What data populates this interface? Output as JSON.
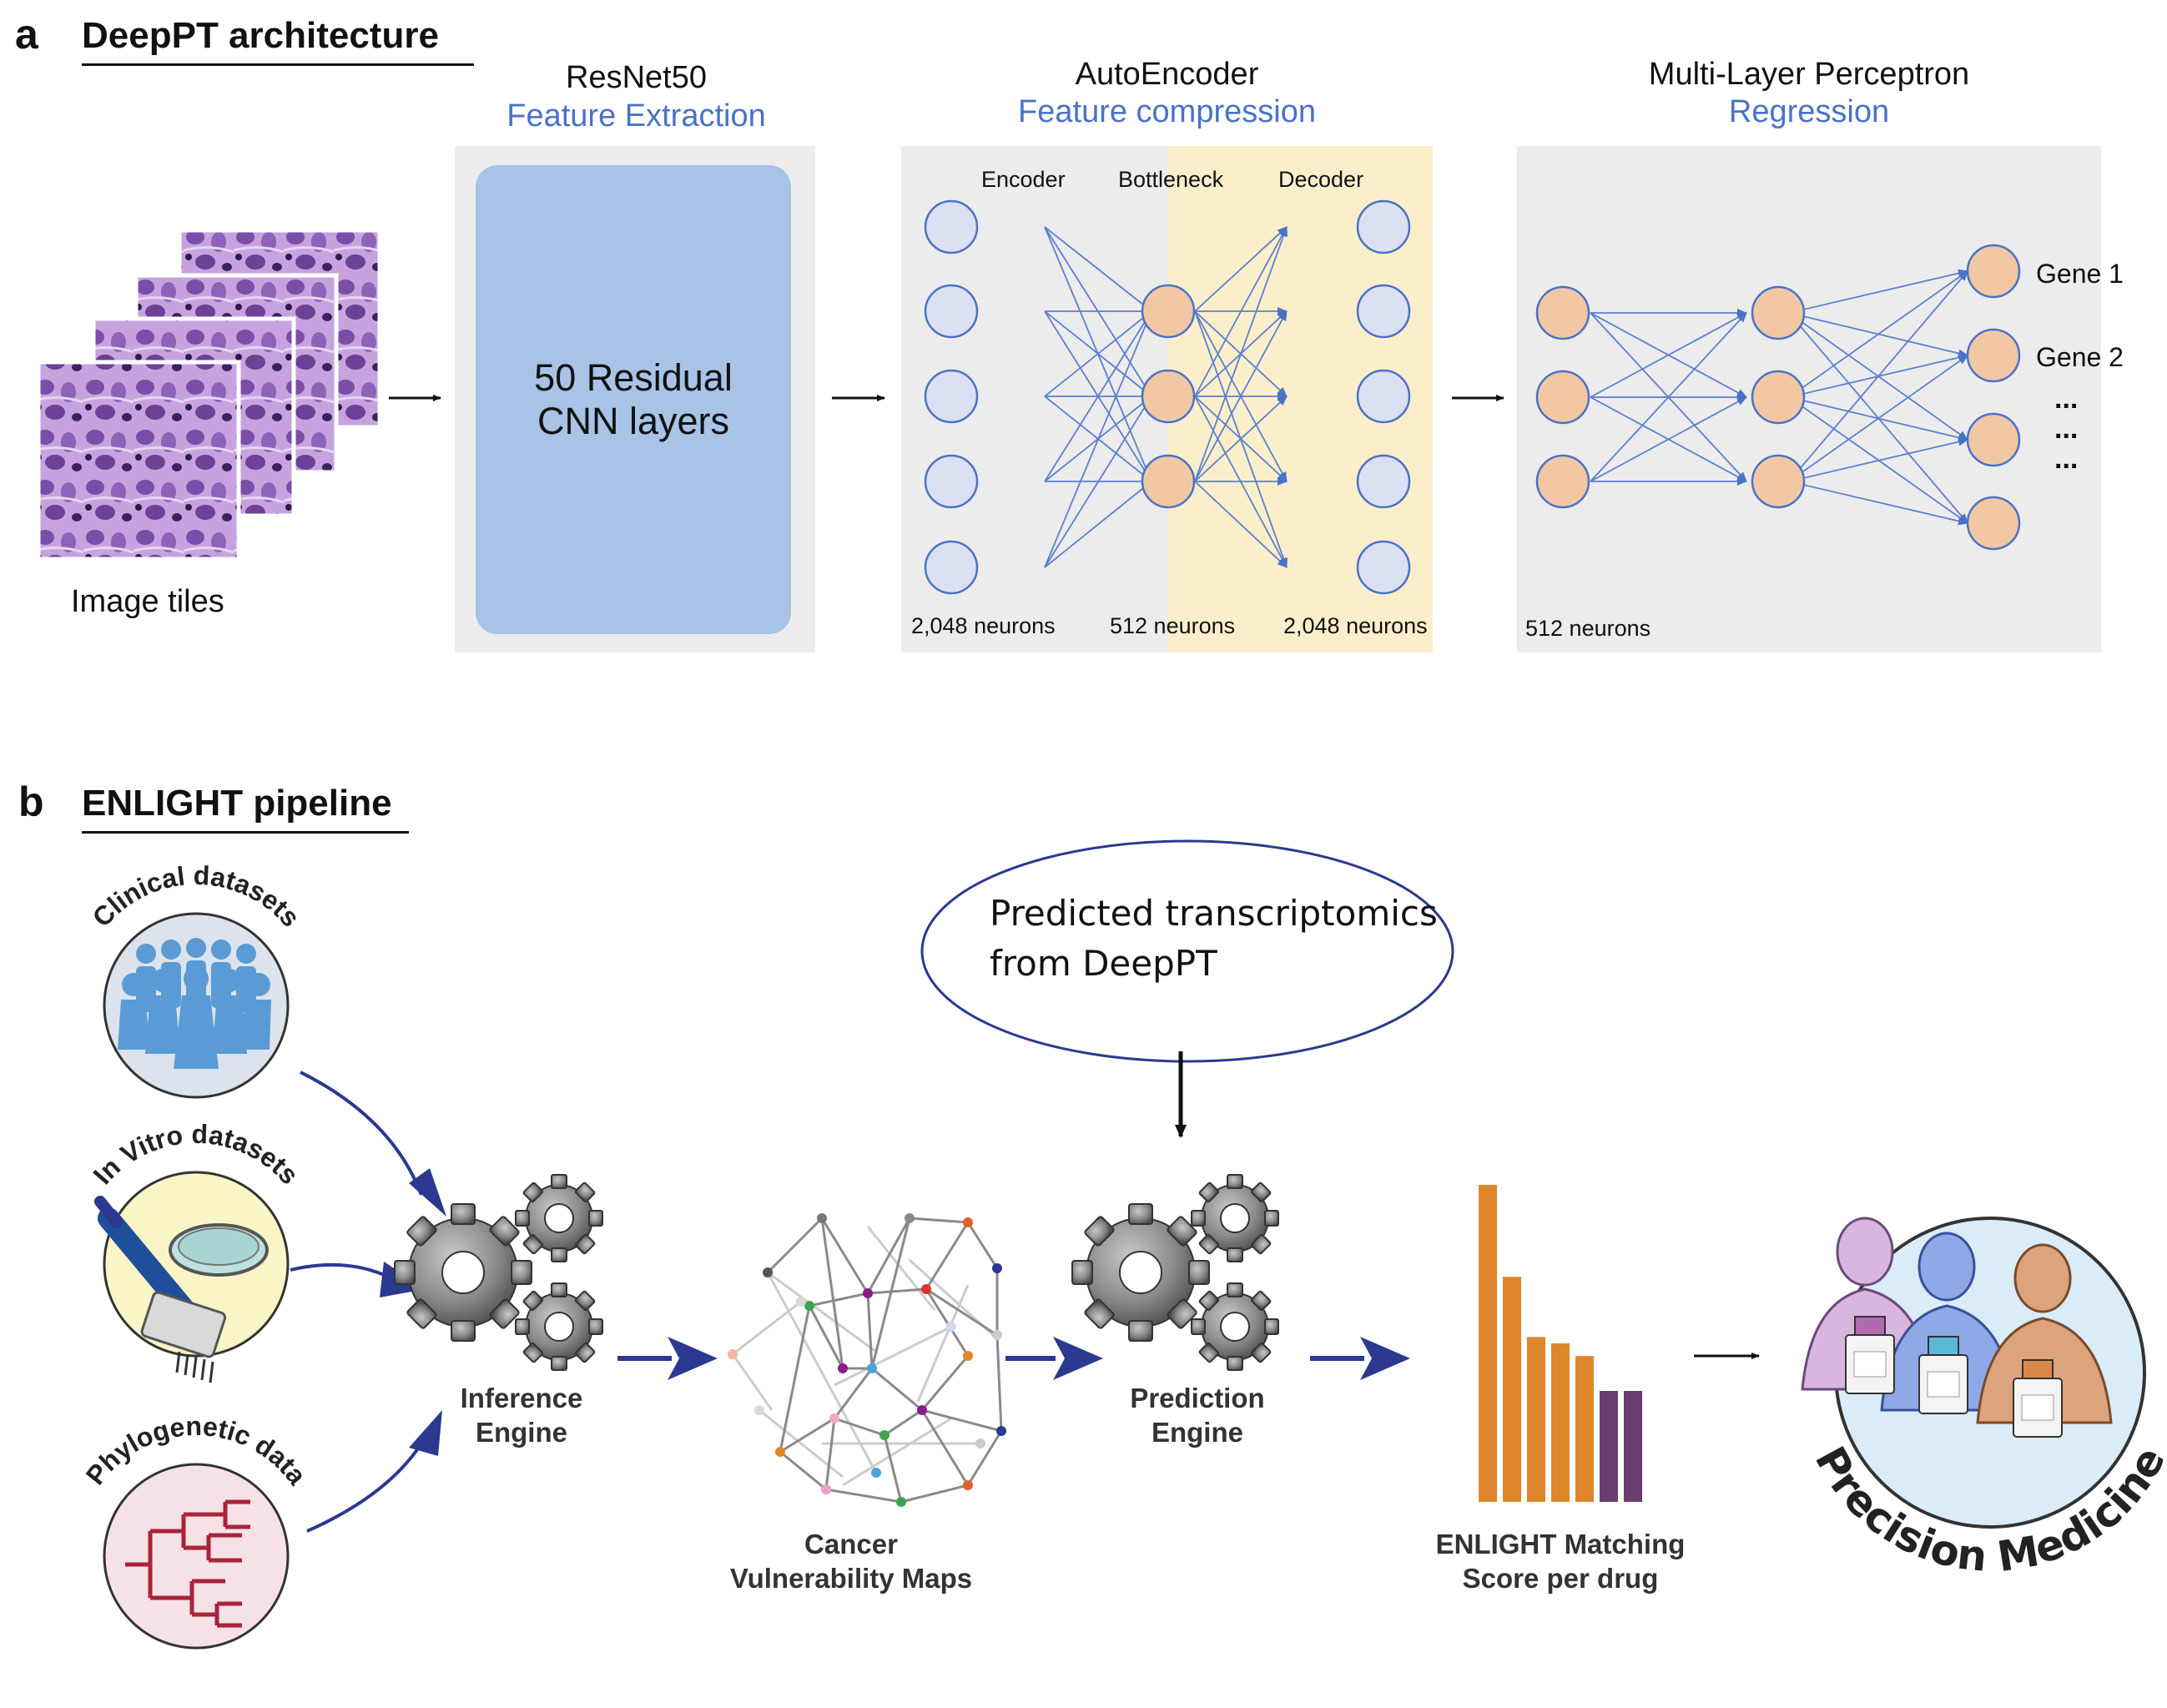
{
  "panel_a": {
    "letter": "a",
    "title": "DeepPT architecture",
    "image_tiles_label": "Image tiles",
    "resnet": {
      "title": "ResNet50",
      "subtitle": "Feature Extraction",
      "box_line1": "50 Residual",
      "box_line2": "CNN layers"
    },
    "autoencoder": {
      "title": "AutoEncoder",
      "subtitle": "Feature compression",
      "encoder_label": "Encoder",
      "bottleneck_label": "Bottleneck",
      "decoder_label": "Decoder",
      "encoder_neurons": "2,048 neurons",
      "bottleneck_neurons": "512 neurons",
      "decoder_neurons": "2,048 neurons"
    },
    "mlp": {
      "title": "Multi-Layer Perceptron",
      "subtitle": "Regression",
      "input_neurons": "512 neurons",
      "gene1": "Gene 1",
      "gene2": "Gene 2",
      "ellipsis": "..."
    },
    "colors": {
      "accent_blue": "#4a72c8",
      "node_blue": "#dbe0f3",
      "node_orange": "#f2c8a4",
      "resnet_box": "#a8c3e6",
      "bottleneck_bg": "#fbefcb",
      "panel_bg": "#ececec"
    }
  },
  "panel_b": {
    "letter": "b",
    "title": "ENLIGHT pipeline",
    "sources": {
      "clinical": "Clinical datasets",
      "in_vitro": "In Vitro datasets",
      "phylogenetic": "Phylogenetic data"
    },
    "predicted_box_line1": "Predicted transcriptomics",
    "predicted_box_line2": "from DeepPT",
    "inference_engine": {
      "line1": "Inference",
      "line2": "Engine"
    },
    "vulnerability_maps": {
      "line1": "Cancer",
      "line2": "Vulnerability Maps"
    },
    "prediction_engine": {
      "line1": "Prediction",
      "line2": "Engine"
    },
    "matching_score": {
      "line1": "ENLIGHT Matching",
      "line2": "Score  per drug"
    },
    "precision_medicine": "Precision Medicine",
    "bar_chart": {
      "values": [
        1.0,
        0.71,
        0.52,
        0.5,
        0.46,
        0.35,
        0.35
      ],
      "colors": [
        "#e0862d",
        "#e0862d",
        "#e0862d",
        "#e0862d",
        "#e0862d",
        "#6a3e6e",
        "#6a3e6e"
      ]
    },
    "icons": [
      "gear-icon",
      "people-crowd-icon",
      "pipette-icon",
      "petri-dish-icon",
      "phylogenetic-tree-icon",
      "network-graph-icon",
      "patients-icon",
      "drug-vial-icon"
    ],
    "colors": {
      "arrow_navy": "#2b3990",
      "clinical_bg": "#dde3ec",
      "invitro_bg": "#f9f5c6",
      "phylo_bg": "#f6e1e7",
      "people_blue": "#5b9bd5",
      "tree_red": "#a8243a"
    }
  }
}
